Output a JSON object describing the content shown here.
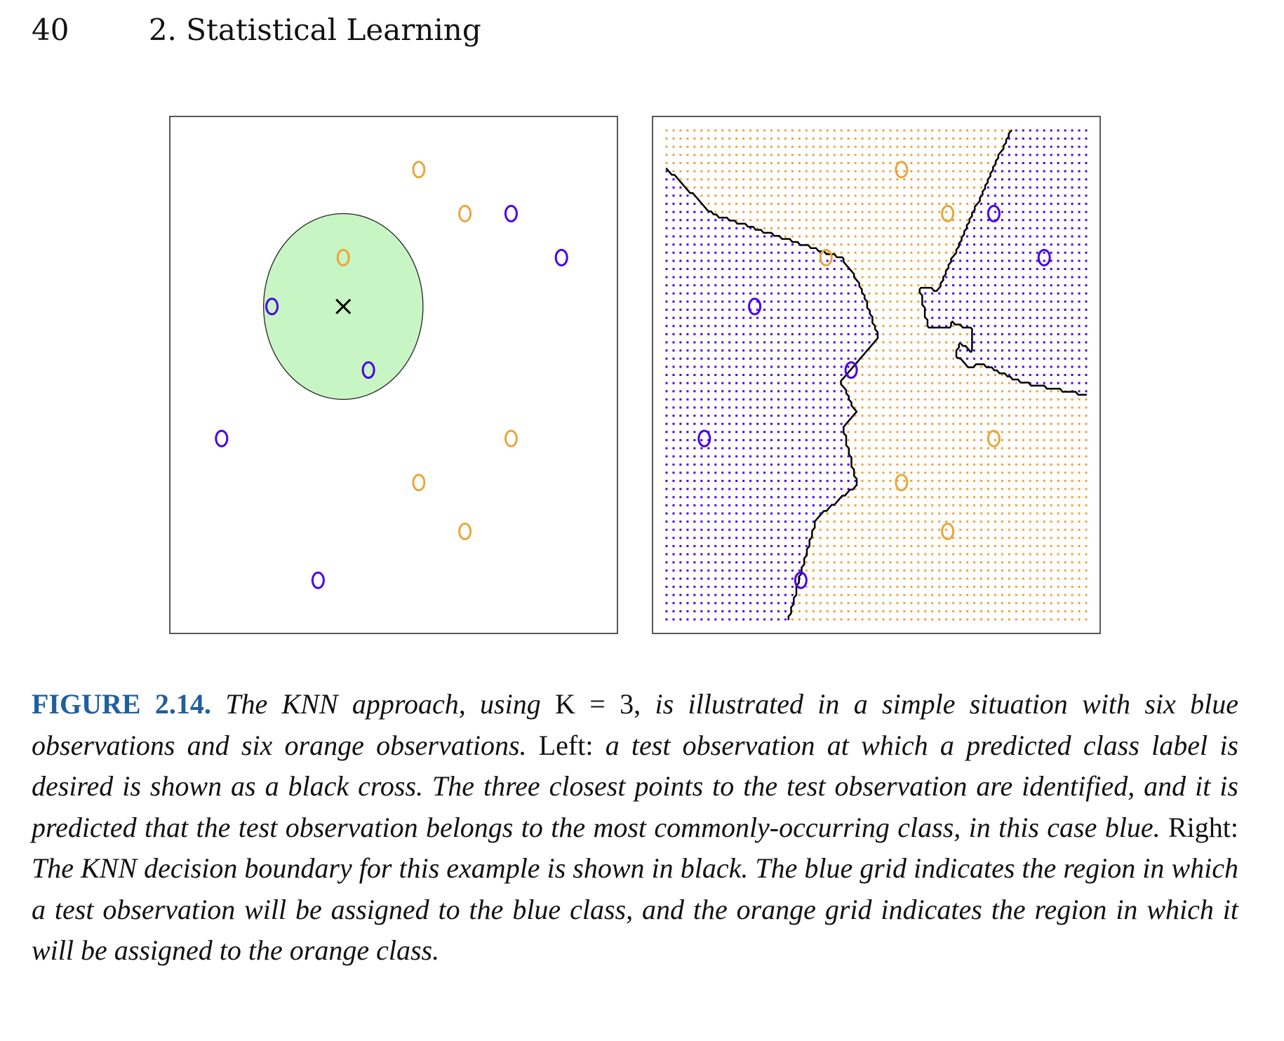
{
  "header": {
    "page_number": "40",
    "chapter_title": "2. Statistical Learning"
  },
  "colors": {
    "blue": "#4a00e8",
    "orange": "#e8a63c",
    "circle_fill": "#c8f5c4"
  },
  "chart_data": [
    {
      "type": "scatter",
      "panel": "left",
      "marker": "o",
      "xlim": [
        0,
        1
      ],
      "ylim": [
        0,
        1
      ],
      "points": [
        {
          "x": 0.56,
          "y": 0.92,
          "class": "orange"
        },
        {
          "x": 0.67,
          "y": 0.83,
          "class": "orange"
        },
        {
          "x": 0.78,
          "y": 0.83,
          "class": "blue"
        },
        {
          "x": 0.38,
          "y": 0.74,
          "class": "orange"
        },
        {
          "x": 0.9,
          "y": 0.74,
          "class": "blue"
        },
        {
          "x": 0.21,
          "y": 0.64,
          "class": "blue"
        },
        {
          "x": 0.44,
          "y": 0.51,
          "class": "blue"
        },
        {
          "x": 0.09,
          "y": 0.37,
          "class": "blue"
        },
        {
          "x": 0.78,
          "y": 0.37,
          "class": "orange"
        },
        {
          "x": 0.56,
          "y": 0.28,
          "class": "orange"
        },
        {
          "x": 0.67,
          "y": 0.18,
          "class": "orange"
        },
        {
          "x": 0.32,
          "y": 0.08,
          "class": "blue"
        }
      ],
      "test_point": {
        "x": 0.38,
        "y": 0.64,
        "marker": "x"
      },
      "neighborhood_radius": 0.19
    },
    {
      "type": "scatter",
      "panel": "right",
      "marker": "o",
      "xlim": [
        0,
        1
      ],
      "ylim": [
        0,
        1
      ],
      "points": [
        {
          "x": 0.56,
          "y": 0.92,
          "class": "orange"
        },
        {
          "x": 0.67,
          "y": 0.83,
          "class": "orange"
        },
        {
          "x": 0.78,
          "y": 0.83,
          "class": "blue"
        },
        {
          "x": 0.38,
          "y": 0.74,
          "class": "orange"
        },
        {
          "x": 0.9,
          "y": 0.74,
          "class": "blue"
        },
        {
          "x": 0.21,
          "y": 0.64,
          "class": "blue"
        },
        {
          "x": 0.44,
          "y": 0.51,
          "class": "blue"
        },
        {
          "x": 0.09,
          "y": 0.37,
          "class": "blue"
        },
        {
          "x": 0.78,
          "y": 0.37,
          "class": "orange"
        },
        {
          "x": 0.56,
          "y": 0.28,
          "class": "orange"
        },
        {
          "x": 0.67,
          "y": 0.18,
          "class": "orange"
        },
        {
          "x": 0.32,
          "y": 0.08,
          "class": "blue"
        }
      ],
      "background_grid": "dots colored by KNN (K = 3) predicted class",
      "decision_boundary": "black"
    }
  ],
  "caption": {
    "label": "FIGURE 2.14.",
    "s1": " The KNN approach, using ",
    "math": "K = 3,",
    "s2": " is illustrated in a simple situation with six blue observations and six orange observations. ",
    "left_word": "Left:",
    "s3": " a test observation at which a predicted class label is desired is shown as a black cross. The three closest points to the test observation are identified, and it is predicted that the test observation belongs to the most commonly-occurring class, in this case blue. ",
    "right_word": "Right:",
    "s4": " The KNN decision boundary for this example is shown in black. The blue grid indicates the region in which a test observation will be assigned to the blue class, and the orange grid indicates the region in which it will be assigned to the orange class."
  }
}
